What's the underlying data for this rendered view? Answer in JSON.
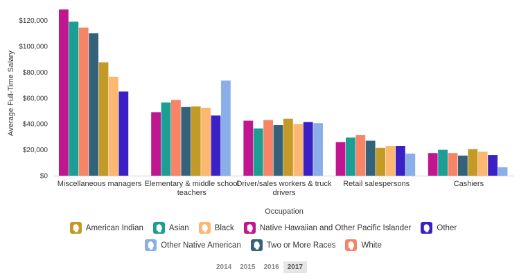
{
  "chart_data": {
    "type": "bar",
    "ylabel": "Average Full-Time Salary",
    "xlabel": "Occupation",
    "ylim": [
      0,
      130000
    ],
    "yticks": [
      0,
      20000,
      40000,
      60000,
      80000,
      100000,
      120000
    ],
    "ytick_labels": [
      "$0",
      "$20,000",
      "$40,000",
      "$60,000",
      "$80,000",
      "$100,000",
      "$120,000"
    ],
    "grid": false,
    "legend_position": "bottom",
    "categories": [
      [
        "Miscellaneous managers"
      ],
      [
        "Elementary & middle school",
        "teachers"
      ],
      [
        "Driver/sales workers & truck",
        "drivers"
      ],
      [
        "Retail salespersons"
      ],
      [
        "Cashiers"
      ]
    ],
    "series": [
      {
        "name": "Native Hawaiian and Other Pacific Islander",
        "color": "#c0168f",
        "values": [
          128500,
          49000,
          42500,
          26000,
          17500
        ]
      },
      {
        "name": "Asian",
        "color": "#1b9e94",
        "values": [
          119000,
          56500,
          36500,
          29500,
          20000
        ]
      },
      {
        "name": "White",
        "color": "#f88468",
        "values": [
          114500,
          58500,
          43000,
          31500,
          17500
        ]
      },
      {
        "name": "Two or More Races",
        "color": "#34627a",
        "values": [
          110000,
          53000,
          39000,
          27000,
          15500
        ]
      },
      {
        "name": "American Indian",
        "color": "#c39a25",
        "values": [
          87500,
          53500,
          44000,
          21500,
          20500
        ]
      },
      {
        "name": "Black",
        "color": "#fcb870",
        "values": [
          76500,
          52500,
          40000,
          23000,
          18500
        ]
      },
      {
        "name": "Other",
        "color": "#3b20c6",
        "values": [
          65000,
          46500,
          41500,
          23000,
          16000
        ]
      },
      {
        "name": "Other Native American",
        "color": "#8aaee7",
        "values": [
          0,
          73500,
          40500,
          17000,
          6500
        ]
      }
    ],
    "legend_order": [
      "American Indian",
      "Asian",
      "Black",
      "Native Hawaiian and Other Pacific Islander",
      "Other",
      "Other Native American",
      "Two or More Races",
      "White"
    ]
  },
  "years": {
    "items": [
      "2014",
      "2015",
      "2016",
      "2017"
    ],
    "selected": "2017"
  }
}
